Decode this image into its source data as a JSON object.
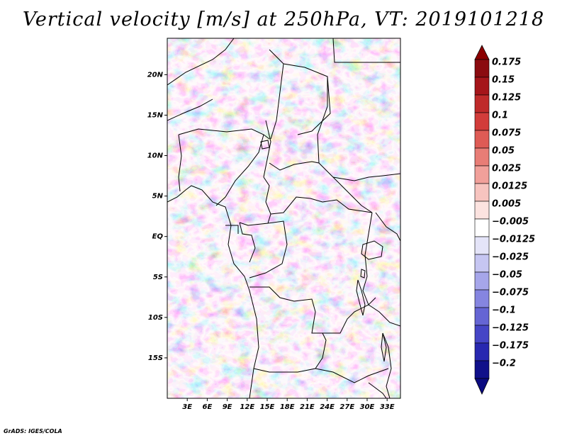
{
  "title": "Vertical velocity [m/s] at 250hPa, VT: 2019101218",
  "credit": "GrADS: IGES/COLA",
  "map": {
    "variable": "Vertical velocity",
    "units": "m/s",
    "level": "250hPa",
    "valid_time": "2019101218",
    "lat_labels": [
      "20N",
      "15N",
      "10N",
      "5N",
      "EQ",
      "5S",
      "10S",
      "15S"
    ],
    "lat_values": [
      20,
      15,
      10,
      5,
      0,
      -5,
      -10,
      -15
    ],
    "lon_labels": [
      "3E",
      "6E",
      "9E",
      "12E",
      "15E",
      "18E",
      "21E",
      "24E",
      "27E",
      "30E",
      "33E"
    ],
    "lon_values": [
      3,
      6,
      9,
      12,
      15,
      18,
      21,
      24,
      27,
      30,
      33
    ],
    "lat_range": [
      -20,
      24.5
    ],
    "lon_range": [
      0,
      35
    ]
  },
  "colorbar": {
    "labels": [
      "0.175",
      "0.15",
      "0.125",
      "0.1",
      "0.075",
      "0.05",
      "0.025",
      "0.0125",
      "0.005",
      "−0.005",
      "−0.0125",
      "−0.025",
      "−0.05",
      "−0.075",
      "−0.1",
      "−0.125",
      "−0.175",
      "−0.2"
    ],
    "colors": [
      "#8b0b10",
      "#a5151a",
      "#bf2a2a",
      "#d23c3a",
      "#de5b55",
      "#e87d76",
      "#f1a09a",
      "#f7c4bf",
      "#fce3e0",
      "#ffffff",
      "#e4e4f8",
      "#c6c6f2",
      "#a6a6ea",
      "#8585e0",
      "#6565d4",
      "#4545c6",
      "#2828b0",
      "#10108a"
    ],
    "top_arrow_color": "#8b0000",
    "bottom_arrow_color": "#0a0a80"
  }
}
